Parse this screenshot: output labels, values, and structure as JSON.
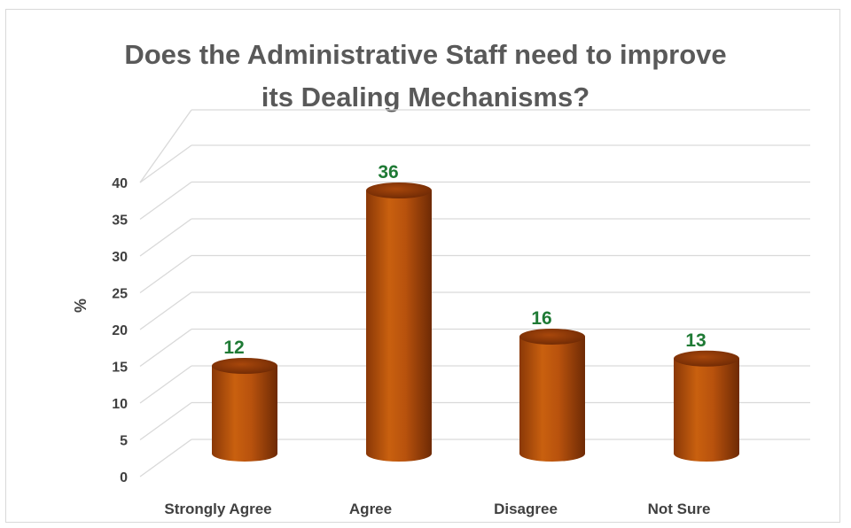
{
  "chart_data": {
    "type": "bar",
    "style": "3d-cylinder",
    "title_lines": [
      "Does the Administrative Staff need to improve",
      "its Dealing Mechanisms?"
    ],
    "title": "Does the Administrative Staff need to improve its Dealing Mechanisms?",
    "xlabel": "",
    "ylabel": "%",
    "categories": [
      "Strongly Agree",
      "Agree",
      "Disagree",
      "Not Sure"
    ],
    "values": [
      12,
      36,
      16,
      13
    ],
    "data_labels": [
      "12",
      "36",
      "16",
      "13"
    ],
    "yticks": [
      0,
      5,
      10,
      15,
      20,
      25,
      30,
      35,
      40
    ],
    "ylim": [
      0,
      40
    ],
    "grid": true,
    "legend": "none",
    "colors": {
      "bar": "#c55a11",
      "bar_dark": "#7a2e06",
      "bar_light": "#d9772d",
      "data_label": "#1f7a35",
      "gridline": "#d9d9d9",
      "text": "#404040",
      "title": "#595959"
    }
  }
}
